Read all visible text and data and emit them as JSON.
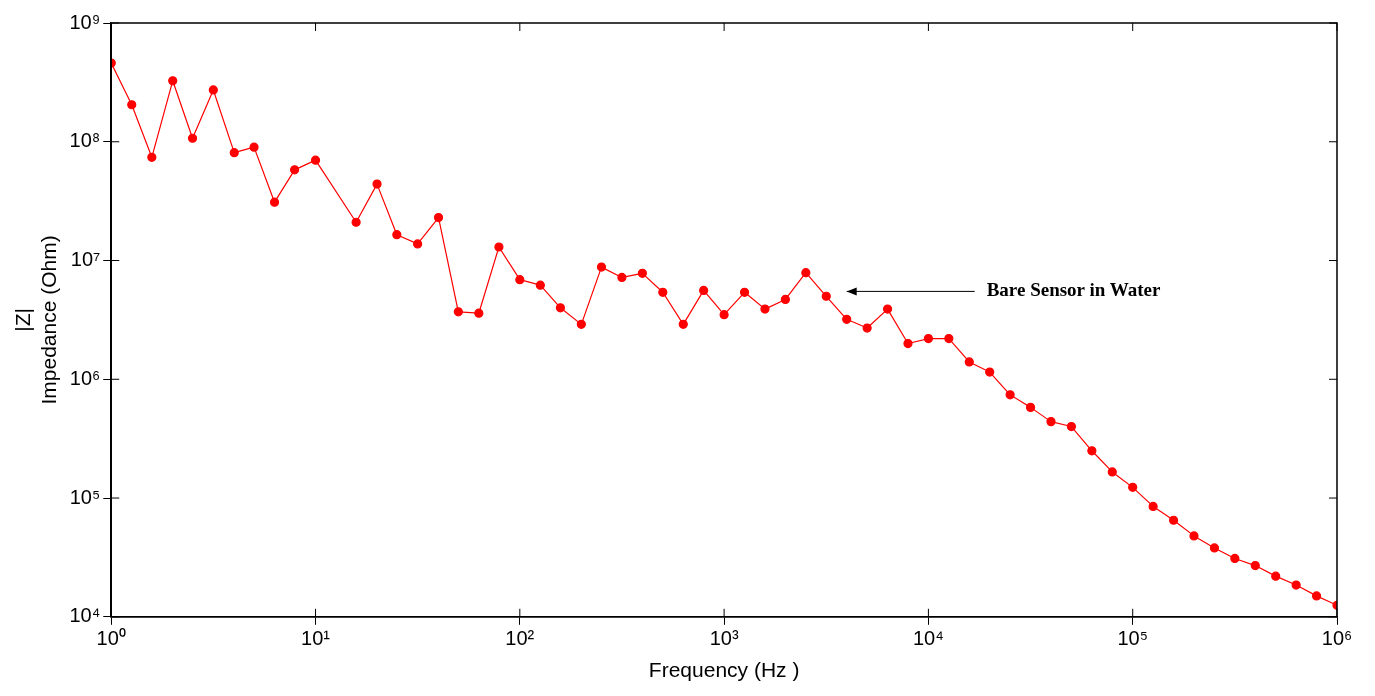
{
  "chart_data": {
    "type": "line",
    "xlabel": "Frequency (Hz )",
    "ylabel": "|Z|\nImpedance (Ohm)",
    "log": "xy",
    "grid": false,
    "legend": false,
    "marker": "circle",
    "line_style": "solid",
    "xlim": [
      1,
      1000000
    ],
    "ylim": [
      10000,
      1000000000
    ],
    "xticks": [
      {
        "value": 1,
        "label": "10⁰"
      },
      {
        "value": 10,
        "label": "10¹"
      },
      {
        "value": 100,
        "label": "10²"
      },
      {
        "value": 1000,
        "label": "10³"
      },
      {
        "value": 10000,
        "label": "10⁴"
      },
      {
        "value": 100000,
        "label": "10⁵"
      },
      {
        "value": 1000000,
        "label": "10⁶"
      }
    ],
    "yticks": [
      {
        "value": 10000,
        "label": "10⁴"
      },
      {
        "value": 100000,
        "label": "10⁵"
      },
      {
        "value": 1000000,
        "label": "10⁶"
      },
      {
        "value": 10000000,
        "label": "10⁷"
      },
      {
        "value": 100000000,
        "label": "10⁸"
      },
      {
        "value": 1000000000,
        "label": "10⁹"
      }
    ],
    "annotations": [
      "Bare Sensor in Water"
    ],
    "series": [
      {
        "color": "#ff0000",
        "x": [
          1,
          1.26,
          1.58,
          2,
          2.5,
          3.16,
          4,
          5,
          6.3,
          7.9,
          10,
          15.8,
          20,
          25,
          31.6,
          40,
          50,
          63,
          79,
          100,
          126,
          158,
          200,
          251,
          316,
          398,
          501,
          631,
          794,
          1000,
          1259,
          1585,
          1995,
          2512,
          3162,
          3981,
          5012,
          6310,
          7943,
          10000,
          12589,
          15849,
          19953,
          25119,
          31623,
          39811,
          50119,
          63096,
          79433,
          100000,
          125893,
          158489,
          199526,
          251189,
          316228,
          398107,
          501187,
          630957,
          794328,
          1000000
        ],
        "values": [
          460000000,
          205000000,
          74000000,
          326000000,
          107000000,
          273000000,
          81000000,
          90000000,
          31000000,
          58000000,
          70000000,
          21000000,
          44000000,
          16500000,
          13800000,
          23000000,
          3700000,
          3600000,
          13000000,
          6900000,
          6200000,
          4000000,
          2900000,
          8800000,
          7200000,
          7800000,
          5400000,
          2900000,
          5600000,
          3500000,
          5400000,
          3900000,
          4700000,
          7900000,
          5000000,
          3200000,
          2700000,
          3900000,
          2000000,
          2200000,
          2200000,
          1400000,
          1150000,
          740000,
          580000,
          440000,
          400000,
          250000,
          166000,
          123000,
          85000,
          65000,
          48000,
          38000,
          31000,
          27000,
          22000,
          18500,
          15000,
          12500
        ]
      }
    ]
  }
}
